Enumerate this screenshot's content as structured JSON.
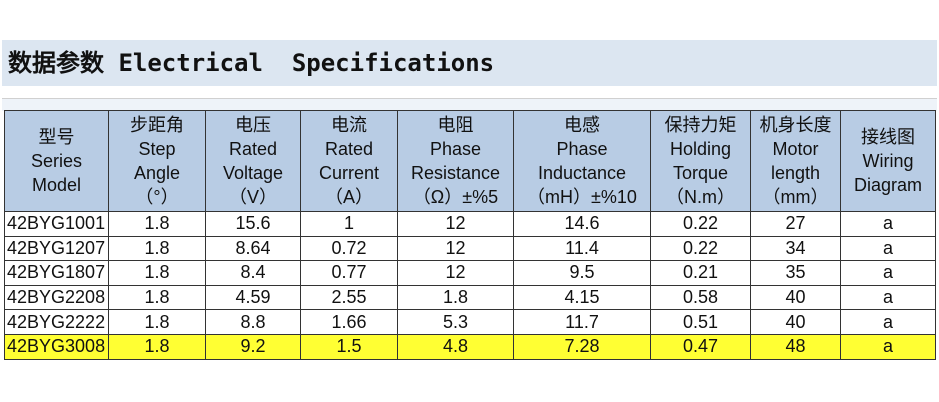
{
  "header": {
    "title": "数据参数 Electrical  Specifications"
  },
  "table": {
    "columns": [
      [
        "型号",
        "Series",
        "Model"
      ],
      [
        "步距角",
        "Step",
        "Angle",
        "（°）"
      ],
      [
        "电压",
        "Rated",
        "Voltage",
        "（V）"
      ],
      [
        "电流",
        "Rated",
        "Current",
        "（A）"
      ],
      [
        "电阻",
        "Phase",
        "Resistance",
        "（Ω）±%5"
      ],
      [
        "电感",
        "Phase",
        "Inductance",
        "（mH）±%10"
      ],
      [
        "保持力矩",
        "Holding",
        "Torque",
        "（N.m）"
      ],
      [
        "机身长度",
        "Motor",
        "length",
        "（mm）"
      ],
      [
        "接线图",
        "Wiring",
        "Diagram"
      ]
    ],
    "rows": [
      [
        "42BYG1001",
        "1.8",
        "15.6",
        "1",
        "12",
        "14.6",
        "0.22",
        "27",
        "a"
      ],
      [
        "42BYG1207",
        "1.8",
        "8.64",
        "0.72",
        "12",
        "11.4",
        "0.22",
        "34",
        "a"
      ],
      [
        "42BYG1807",
        "1.8",
        "8.4",
        "0.77",
        "12",
        "9.5",
        "0.21",
        "35",
        "a"
      ],
      [
        "42BYG2208",
        "1.8",
        "4.59",
        "2.55",
        "1.8",
        "4.15",
        "0.58",
        "40",
        "a"
      ],
      [
        "42BYG2222",
        "1.8",
        "8.8",
        "1.66",
        "5.3",
        "11.7",
        "0.51",
        "40",
        "a"
      ],
      [
        "42BYG3008",
        "1.8",
        "9.2",
        "1.5",
        "4.8",
        "7.28",
        "0.47",
        "48",
        "a"
      ]
    ]
  }
}
